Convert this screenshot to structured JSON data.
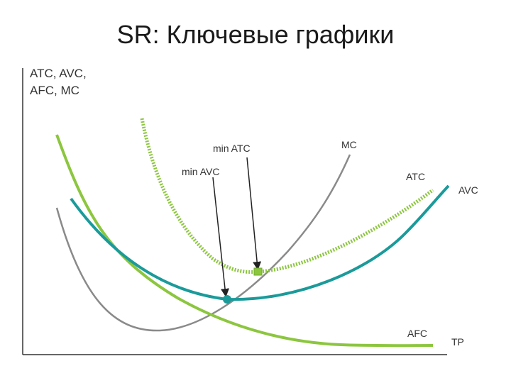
{
  "title": "SR: Ключевые графики",
  "chart_data": {
    "type": "line",
    "title": "SR: Ключевые графики",
    "ylabel_lines": [
      "ATC, AVC,",
      "AFC, MC"
    ],
    "xlabel": "TP",
    "grid": false,
    "series": [
      {
        "name": "MC",
        "color": "#8a8a8a"
      },
      {
        "name": "ATC",
        "color": "#8cc63f",
        "style": "dotted-thick"
      },
      {
        "name": "AVC",
        "color": "#1b9a9a"
      },
      {
        "name": "AFC",
        "color": "#8cc63f"
      }
    ],
    "annotations": {
      "min_atc": "min ATC",
      "min_avc": "min AVC",
      "mc": "MC",
      "atc": "ATC",
      "avc": "AVC",
      "afc": "AFC"
    }
  }
}
